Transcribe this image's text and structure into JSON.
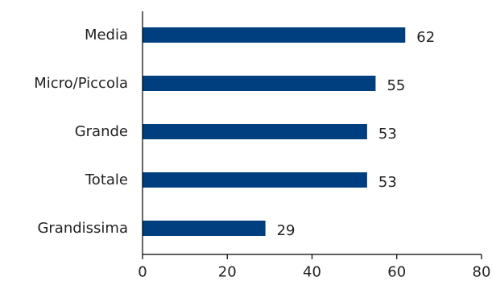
{
  "chart_data": {
    "type": "bar",
    "orientation": "horizontal",
    "title": "",
    "xlabel": "",
    "ylabel": "",
    "categories": [
      "Media",
      "Micro/Piccola",
      "Grande",
      "Totale",
      "Grandissima"
    ],
    "values": [
      62,
      55,
      53,
      53,
      29
    ],
    "data_labels": [
      "62",
      "55",
      "53",
      "53",
      "29"
    ],
    "xlim": [
      0,
      80
    ],
    "xticks": [
      0,
      20,
      40,
      60,
      80
    ],
    "xtick_labels": [
      "0",
      "20",
      "40",
      "60",
      "80"
    ],
    "grid": false,
    "legend": "none",
    "bar_color": "#003f7f"
  }
}
